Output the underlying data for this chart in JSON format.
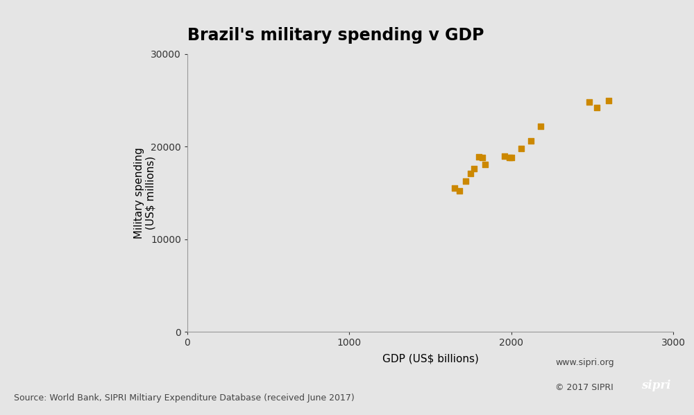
{
  "title": "Brazil's military spending v GDP",
  "xlabel": "GDP (US$ billions)",
  "ylabel": "Military spending\n(US$ millions)",
  "xlim": [
    0,
    3000
  ],
  "ylim": [
    0,
    30000
  ],
  "xticks": [
    0,
    1000,
    2000,
    3000
  ],
  "yticks": [
    0,
    10000,
    20000,
    30000
  ],
  "scatter_color": "#CC8800",
  "background_color": "#e5e5e5",
  "source_text": "Source: World Bank, SIPRI Miltiary Expenditure Database (received June 2017)",
  "sipri_url": "www.sipri.org",
  "sipri_copy": "© 2017 SIPRI",
  "points": [
    [
      1650,
      15500
    ],
    [
      1680,
      15200
    ],
    [
      1720,
      16300
    ],
    [
      1750,
      17100
    ],
    [
      1770,
      17600
    ],
    [
      1800,
      18900
    ],
    [
      1820,
      18800
    ],
    [
      1840,
      18100
    ],
    [
      1960,
      19000
    ],
    [
      1990,
      18800
    ],
    [
      2000,
      18800
    ],
    [
      2060,
      19800
    ],
    [
      2120,
      20600
    ],
    [
      2180,
      22200
    ],
    [
      2480,
      24800
    ],
    [
      2530,
      24200
    ],
    [
      2600,
      25000
    ]
  ],
  "marker_size": 35,
  "title_fontsize": 17,
  "label_fontsize": 11,
  "tick_fontsize": 10,
  "source_fontsize": 9,
  "sipri_fontsize": 9
}
